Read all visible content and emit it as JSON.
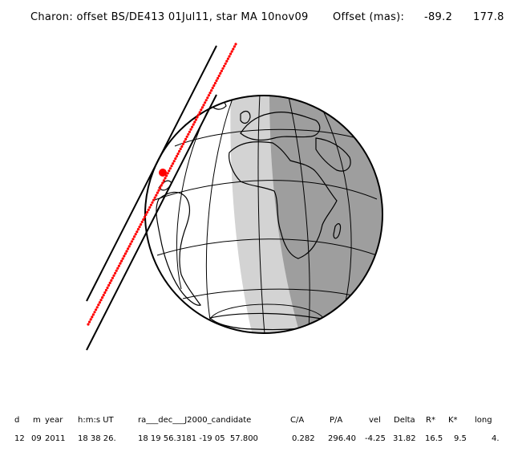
{
  "title": {
    "object_text": "Charon: offset BS/DE413 01Jul11, star MA 10nov09",
    "offset_label": "Offset (mas):",
    "offset_ra": "-89.2",
    "offset_dec": "177.8"
  },
  "table": {
    "headers": [
      "d",
      "m",
      "year",
      "h:m:s UT",
      "ra___dec___J2000_candidate",
      "C/A",
      "P/A",
      "vel",
      "Delta",
      "R*",
      "K*",
      "long"
    ],
    "values": [
      "12",
      "09",
      "2011",
      "18 38 26.",
      "18 19 56.3181 -19 05  57.800",
      "0.282",
      "296.40",
      "-4.25",
      "31.82",
      "16.5",
      "9.5",
      "4."
    ]
  },
  "map": {
    "projection": "orthographic globe",
    "globe_fill": "#ffffff",
    "twilight_shade": "#d3d3d3",
    "night_shade": "#9e9e9e",
    "outline_color": "#000000",
    "shadow_path_color": "#000000",
    "centerline_color": "#ff0000",
    "closest_approach_marker_color": "#ff0000"
  }
}
